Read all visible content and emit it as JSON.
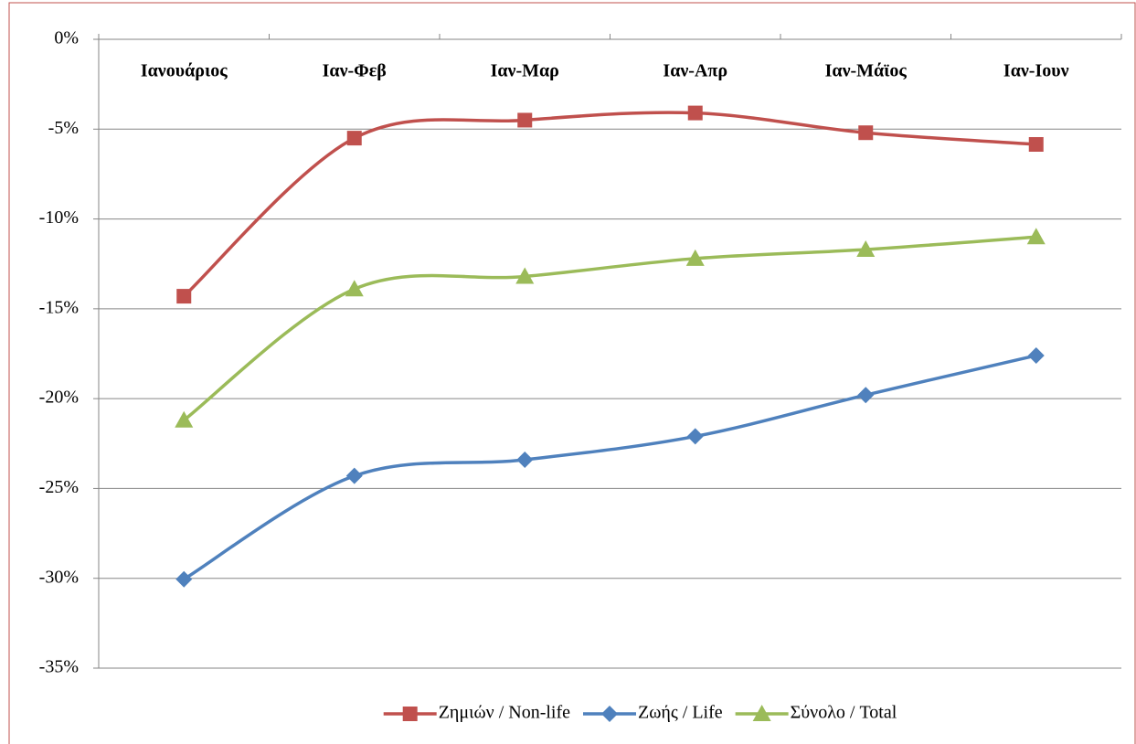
{
  "chart_data": {
    "type": "line",
    "categories": [
      "Ιανουάριος",
      "Ιαν-Φεβ",
      "Ιαν-Μαρ",
      "Ιαν-Απρ",
      "Ιαν-Μάϊος",
      "Ιαν-Ιουν"
    ],
    "series": [
      {
        "name": "Ζημιών / Non-life",
        "color": "#c0504d",
        "marker": "square",
        "values": [
          -14.3,
          -5.5,
          -4.5,
          -4.1,
          -5.2,
          -5.85
        ]
      },
      {
        "name": "Ζωής / Life",
        "color": "#4f81bd",
        "marker": "diamond",
        "values": [
          -30.05,
          -24.3,
          -23.4,
          -22.1,
          -19.8,
          -17.6
        ]
      },
      {
        "name": "Σύνολο / Total",
        "color": "#9bbb59",
        "marker": "triangle",
        "values": [
          -21.2,
          -13.9,
          -13.2,
          -12.2,
          -11.7,
          -11.0
        ]
      }
    ],
    "ylim": [
      -35,
      0
    ],
    "yticks": [
      {
        "value": 0,
        "label": "0%"
      },
      {
        "value": -5,
        "label": "-5%"
      },
      {
        "value": -10,
        "label": "-10%"
      },
      {
        "value": -15,
        "label": "-15%"
      },
      {
        "value": -20,
        "label": "-20%"
      },
      {
        "value": -25,
        "label": "-25%"
      },
      {
        "value": -30,
        "label": "-30%"
      },
      {
        "value": -35,
        "label": "-35%"
      }
    ],
    "grid": true,
    "smooth": true,
    "legend": "bottom"
  }
}
